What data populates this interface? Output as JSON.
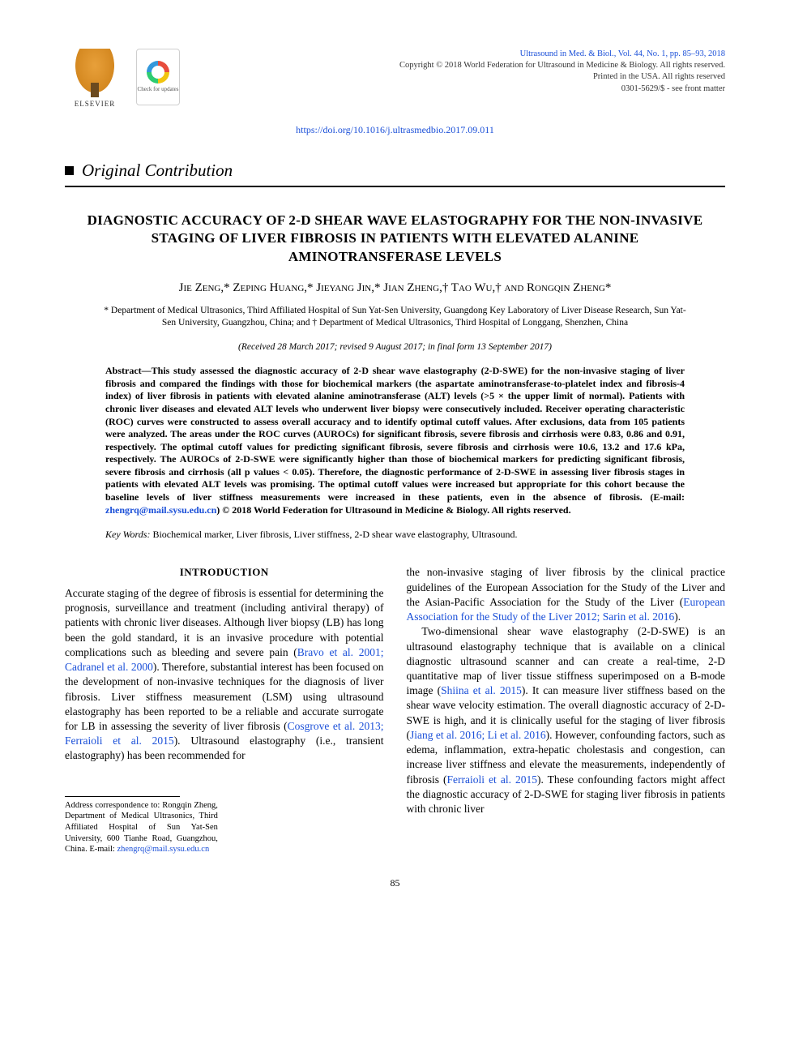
{
  "header": {
    "publisher_name": "ELSEVIER",
    "crossmark_label": "Check for updates",
    "journal_ref": "Ultrasound in Med. & Biol., Vol. 44, No. 1, pp. 85–93, 2018",
    "copyright_line": "Copyright © 2018 World Federation for Ultrasound in Medicine & Biology. All rights reserved.",
    "printed_line": "Printed in the USA. All rights reserved",
    "issn_line": "0301-5629/$ - see front matter",
    "doi_url": "https://doi.org/10.1016/j.ultrasmedbio.2017.09.011"
  },
  "section_label": "Original Contribution",
  "title": "DIAGNOSTIC ACCURACY OF 2-D SHEAR WAVE ELASTOGRAPHY FOR THE NON-INVASIVE STAGING OF LIVER FIBROSIS IN PATIENTS WITH ELEVATED ALANINE AMINOTRANSFERASE LEVELS",
  "authors_html": "Jie Zeng,* Zeping Huang,* Jieyang Jin,* Jian Zheng,† Tao Wu,† and Rongqin Zheng*",
  "affiliations": "* Department of Medical Ultrasonics, Third Affiliated Hospital of Sun Yat-Sen University, Guangdong Key Laboratory of Liver Disease Research, Sun Yat-Sen University, Guangzhou, China; and † Department of Medical Ultrasonics, Third Hospital of Longgang, Shenzhen, China",
  "dates": "(Received 28 March 2017; revised 9 August 2017; in final form 13 September 2017)",
  "abstract": {
    "label": "Abstract—",
    "body": "This study assessed the diagnostic accuracy of 2-D shear wave elastography (2-D-SWE) for the non-invasive staging of liver fibrosis and compared the findings with those for biochemical markers (the aspartate aminotransferase-to-platelet index and fibrosis-4 index) of liver fibrosis in patients with elevated alanine aminotransferase (ALT) levels (>5 × the upper limit of normal). Patients with chronic liver diseases and elevated ALT levels who underwent liver biopsy were consecutively included. Receiver operating characteristic (ROC) curves were constructed to assess overall accuracy and to identify optimal cutoff values. After exclusions, data from 105 patients were analyzed. The areas under the ROC curves (AUROCs) for significant fibrosis, severe fibrosis and cirrhosis were 0.83, 0.86 and 0.91, respectively. The optimal cutoff values for predicting significant fibrosis, severe fibrosis and cirrhosis were 10.6, 13.2 and 17.6 kPa, respectively. The AUROCs of 2-D-SWE were significantly higher than those of biochemical markers for predicting significant fibrosis, severe fibrosis and cirrhosis (all p values < 0.05). Therefore, the diagnostic performance of 2-D-SWE in assessing liver fibrosis stages in patients with elevated ALT levels was promising. The optimal cutoff values were increased but appropriate for this cohort because the baseline levels of liver stiffness measurements were increased in these patients, even in the absence of fibrosis. (E-mail: ",
    "email": "zhengrq@mail.sysu.edu.cn",
    "tail": ")   © 2018 World Federation for Ultrasound in Medicine & Biology. All rights reserved."
  },
  "keywords": {
    "label": "Key Words:",
    "list": "Biochemical marker, Liver fibrosis, Liver stiffness, 2-D shear wave elastography, Ultrasound."
  },
  "intro_heading": "INTRODUCTION",
  "body": {
    "col1_p1_a": "Accurate staging of the degree of fibrosis is essential for determining the prognosis, surveillance and treatment (including antiviral therapy) of patients with chronic liver diseases. Although liver biopsy (LB) has long been the gold standard, it is an invasive procedure with potential complications such as bleeding and severe pain (",
    "cite1": "Bravo et al. 2001; Cadranel et al. 2000",
    "col1_p1_b": "). Therefore, substantial interest has been focused on the development of non-invasive techniques for the diagnosis of liver fibrosis. Liver stiffness measurement (LSM) using ultrasound elastography has been reported to be a reliable and accurate surrogate for LB in assessing the severity of liver fibrosis (",
    "cite2": "Cosgrove et al. 2013; Ferraioli et al. 2015",
    "col1_p1_c": "). Ultrasound elastography (i.e., transient elastography) has been recommended for",
    "col2_p1_a": "the non-invasive staging of liver fibrosis by the clinical practice guidelines of the European Association for the Study of the Liver and the Asian-Pacific Association for the Study of the Liver (",
    "cite3": "European Association for the Study of the Liver 2012; Sarin et al. 2016",
    "col2_p1_b": ").",
    "col2_p2_a": "Two-dimensional shear wave elastography (2-D-SWE) is an ultrasound elastography technique that is available on a clinical diagnostic ultrasound scanner and can create a real-time, 2-D quantitative map of liver tissue stiffness superimposed on a B-mode image (",
    "cite4": "Shiina et al. 2015",
    "col2_p2_b": "). It can measure liver stiffness based on the shear wave velocity estimation. The overall diagnostic accuracy of 2-D-SWE is high, and it is clinically useful for the staging of liver fibrosis (",
    "cite5": "Jiang et al. 2016; Li et al. 2016",
    "col2_p2_c": "). However, confounding factors, such as edema, inflammation, extra-hepatic cholestasis and congestion, can increase liver stiffness and elevate the measurements, independently of fibrosis (",
    "cite6": "Ferraioli et al. 2015",
    "col2_p2_d": "). These confounding factors might affect the diagnostic accuracy of 2-D-SWE for staging liver fibrosis in patients with chronic liver"
  },
  "footnote": {
    "text_a": "Address correspondence to: Rongqin Zheng, Department of Medical Ultrasonics, Third Affiliated Hospital of Sun Yat-Sen University, 600 Tianhe Road, Guangzhou, China. E-mail: ",
    "email": "zhengrq@mail.sysu.edu.cn"
  },
  "page_number": "85",
  "colors": {
    "link": "#1a4fd8",
    "text": "#000000",
    "background": "#ffffff"
  }
}
